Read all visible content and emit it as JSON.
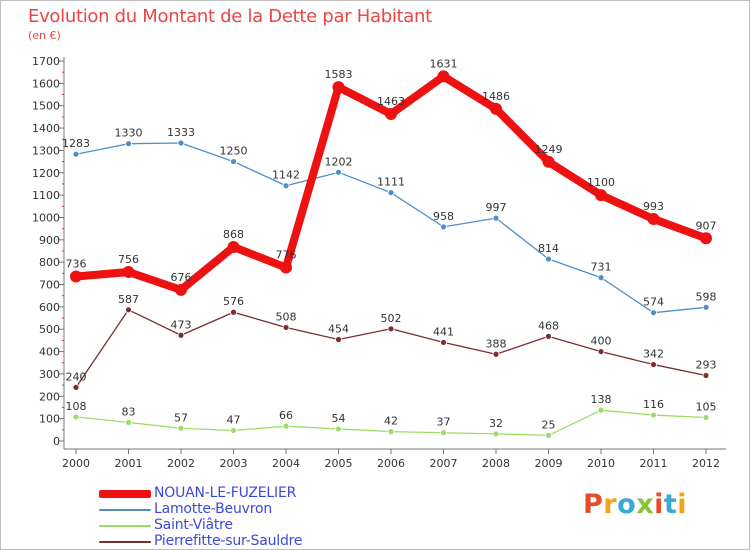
{
  "header": {
    "title": "Evolution du Montant de la Dette par Habitant",
    "subtitle": "(en €)"
  },
  "logo": {
    "text": "Proxiti",
    "colors": [
      "#e64b2a",
      "#f2a31b",
      "#3aa8d8",
      "#86c23a",
      "#e64b2a",
      "#3aa8d8",
      "#f2a31b"
    ]
  },
  "chart_data": {
    "type": "line",
    "x": [
      "2000",
      "2001",
      "2002",
      "2003",
      "2004",
      "2005",
      "2006",
      "2007",
      "2008",
      "2009",
      "2010",
      "2011",
      "2012"
    ],
    "ylim": [
      0,
      1700
    ],
    "yticks": [
      0,
      100,
      200,
      300,
      400,
      500,
      600,
      700,
      800,
      900,
      1000,
      1100,
      1200,
      1300,
      1400,
      1500,
      1600,
      1700
    ],
    "grid": false,
    "legend_position": "bottom-left",
    "series": [
      {
        "name": "NOUAN-LE-FUZELIER",
        "color": "#ee1111",
        "values": [
          736,
          756,
          676,
          868,
          776,
          1583,
          1463,
          1631,
          1486,
          1249,
          1100,
          993,
          907
        ]
      },
      {
        "name": "Lamotte-Beuvron",
        "color": "#4f8fc9",
        "values": [
          1283,
          1330,
          1333,
          1250,
          1142,
          1202,
          1111,
          958,
          997,
          814,
          731,
          574,
          598
        ]
      },
      {
        "name": "Saint-Viâtre",
        "color": "#99dd66",
        "values": [
          108,
          83,
          57,
          47,
          66,
          54,
          42,
          37,
          32,
          25,
          138,
          116,
          105
        ]
      },
      {
        "name": "Pierrefitte-sur-Sauldre",
        "color": "#7a2e2e",
        "values": [
          240,
          587,
          473,
          576,
          508,
          454,
          502,
          441,
          388,
          468,
          400,
          342,
          293
        ]
      }
    ]
  }
}
